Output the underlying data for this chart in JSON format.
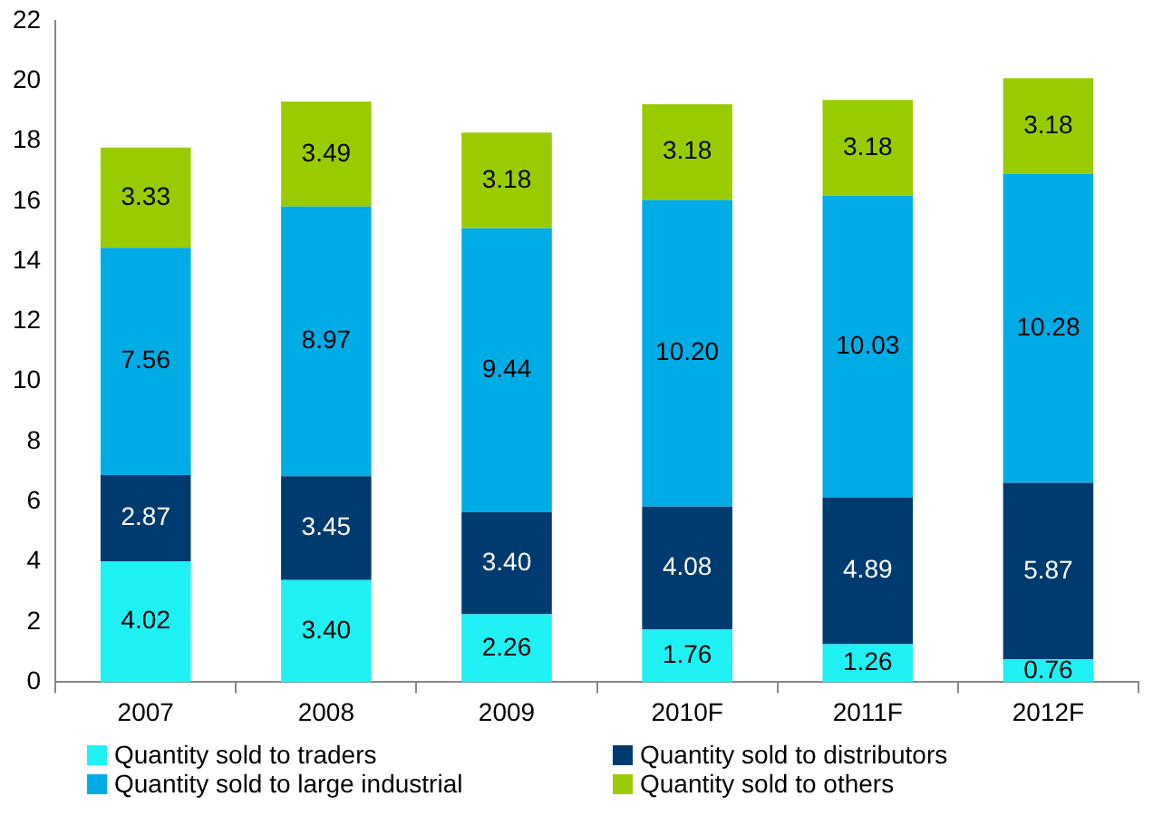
{
  "chart_data": {
    "type": "bar",
    "stacked": true,
    "categories": [
      "2007",
      "2008",
      "2009",
      "2010F",
      "2011F",
      "2012F"
    ],
    "series": [
      {
        "name": "Quantity sold to traders",
        "color": "#1ff0f4",
        "values": [
          4.02,
          3.4,
          2.26,
          1.76,
          1.26,
          0.76
        ],
        "value_labels": [
          "4.02",
          "3.40",
          "2.26",
          "1.76",
          "1.26",
          "0.76"
        ]
      },
      {
        "name": "Quantity sold to distributors",
        "color": "#003b6f",
        "values": [
          2.87,
          3.45,
          3.4,
          4.08,
          4.89,
          5.87
        ],
        "value_labels": [
          "2.87",
          "3.45",
          "3.40",
          "4.08",
          "4.89",
          "5.87"
        ]
      },
      {
        "name": "Quantity sold to large industrial",
        "color": "#00ace6",
        "values": [
          7.56,
          8.97,
          9.44,
          10.2,
          10.03,
          10.28
        ],
        "value_labels": [
          "7.56",
          "8.97",
          "9.44",
          "10.20",
          "10.03",
          "10.28"
        ]
      },
      {
        "name": "Quantity sold to others",
        "color": "#99cc00",
        "values": [
          3.33,
          3.49,
          3.18,
          3.18,
          3.18,
          3.18
        ],
        "value_labels": [
          "3.33",
          "3.49",
          "3.18",
          "3.18",
          "3.18",
          "3.18"
        ]
      }
    ],
    "ylim": [
      0,
      22
    ],
    "yticks": [
      0,
      2,
      4,
      6,
      8,
      10,
      12,
      14,
      16,
      18,
      20,
      22
    ],
    "grid": false,
    "legend": "bottom"
  }
}
